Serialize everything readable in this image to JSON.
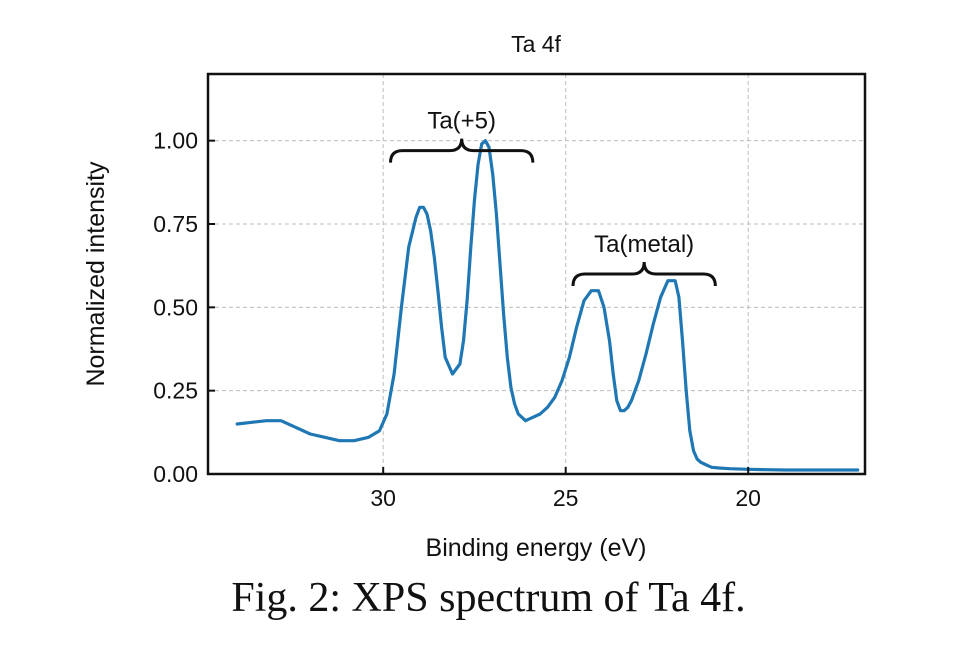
{
  "chart_data": {
    "type": "line",
    "title": "Ta 4f",
    "xlabel": "Binding energy (eV)",
    "ylabel": "Normalized intensity",
    "xlim": [
      34.8,
      16.8
    ],
    "ylim": [
      0,
      1.2
    ],
    "x_inverted": true,
    "grid": true,
    "x_ticks": [
      30,
      25,
      20
    ],
    "x_tick_labels": [
      "30",
      "25",
      "20"
    ],
    "y_ticks": [
      0,
      0.25,
      0.5,
      0.75,
      1.0
    ],
    "y_tick_labels": [
      "0.00",
      "0.25",
      "0.50",
      "0.75",
      "1.00"
    ],
    "series": [
      {
        "color": "#1f77b4",
        "x": [
          34.0,
          33.6,
          33.2,
          32.8,
          32.4,
          32.0,
          31.6,
          31.2,
          30.8,
          30.4,
          30.1,
          29.9,
          29.7,
          29.5,
          29.3,
          29.1,
          29.0,
          28.9,
          28.8,
          28.7,
          28.6,
          28.5,
          28.4,
          28.3,
          28.1,
          27.9,
          27.8,
          27.7,
          27.6,
          27.5,
          27.4,
          27.3,
          27.2,
          27.1,
          27.0,
          26.9,
          26.8,
          26.7,
          26.6,
          26.5,
          26.4,
          26.3,
          26.2,
          26.1,
          25.9,
          25.7,
          25.5,
          25.3,
          25.1,
          24.9,
          24.7,
          24.5,
          24.3,
          24.1,
          23.95,
          23.8,
          23.7,
          23.6,
          23.5,
          23.4,
          23.3,
          23.2,
          23.0,
          22.8,
          22.6,
          22.4,
          22.2,
          22.0,
          21.9,
          21.8,
          21.7,
          21.6,
          21.5,
          21.4,
          21.3,
          21.2,
          21.1,
          21.0,
          20.8,
          20.5,
          20.0,
          19.5,
          19.0,
          18.0,
          17.0
        ],
        "y": [
          0.15,
          0.155,
          0.16,
          0.16,
          0.14,
          0.12,
          0.11,
          0.1,
          0.1,
          0.11,
          0.13,
          0.18,
          0.3,
          0.5,
          0.68,
          0.77,
          0.8,
          0.8,
          0.78,
          0.73,
          0.65,
          0.55,
          0.44,
          0.35,
          0.3,
          0.33,
          0.4,
          0.52,
          0.68,
          0.82,
          0.93,
          0.99,
          1.0,
          0.98,
          0.9,
          0.78,
          0.63,
          0.48,
          0.35,
          0.26,
          0.21,
          0.18,
          0.17,
          0.16,
          0.17,
          0.18,
          0.2,
          0.23,
          0.28,
          0.35,
          0.44,
          0.52,
          0.55,
          0.55,
          0.5,
          0.4,
          0.3,
          0.22,
          0.19,
          0.19,
          0.2,
          0.22,
          0.28,
          0.36,
          0.45,
          0.53,
          0.58,
          0.58,
          0.53,
          0.4,
          0.25,
          0.13,
          0.07,
          0.045,
          0.035,
          0.03,
          0.025,
          0.02,
          0.018,
          0.016,
          0.014,
          0.013,
          0.012,
          0.012,
          0.012
        ]
      }
    ],
    "annotations": [
      {
        "text": "Ta(+5)",
        "bracket_from": 29.8,
        "bracket_to": 25.9,
        "y": 0.97
      },
      {
        "text": "Ta(metal)",
        "bracket_from": 24.8,
        "bracket_to": 20.9,
        "y": 0.6
      }
    ]
  },
  "caption": "Fig. 2: XPS spectrum of Ta 4f."
}
